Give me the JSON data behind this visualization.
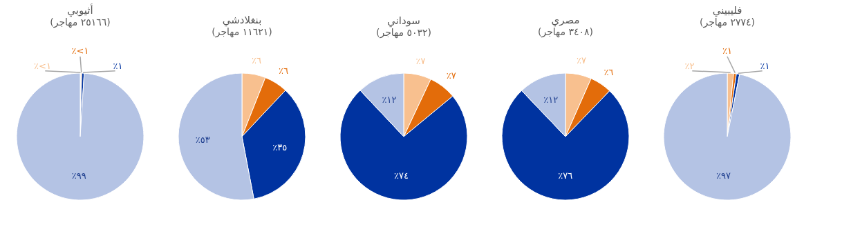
{
  "chart_data": [
    {
      "type": "pie",
      "title": "أثيوبي",
      "subtitle": "(٢٥١٦٦ مهاجر)",
      "categories": [
        null,
        null,
        null,
        null
      ],
      "values": [
        0.2,
        0.2,
        0.6,
        99
      ],
      "value_labels": [
        "٪<١",
        "٪<١",
        "٪١",
        "٪٩٩"
      ],
      "colors": [
        "#f8c08f",
        "#e36c0a",
        "#0033a0",
        "#b4c3e4"
      ]
    },
    {
      "type": "pie",
      "title": "بنغلادشي",
      "subtitle": "(١١٦٢١ مهاجر)",
      "categories": [
        null,
        null,
        null,
        null
      ],
      "values": [
        6,
        6,
        35,
        53
      ],
      "value_labels": [
        "٪٦",
        "٪٦",
        "٪٣٥",
        "٪٥٣"
      ],
      "colors": [
        "#f8c08f",
        "#e36c0a",
        "#0033a0",
        "#b4c3e4"
      ]
    },
    {
      "type": "pie",
      "title": "سوداني",
      "subtitle": "(٥٠٣٢ مهاجر)",
      "categories": [
        null,
        null,
        null,
        null
      ],
      "values": [
        7,
        7,
        74,
        12
      ],
      "value_labels": [
        "٪٧",
        "٪٧",
        "٪٧٤",
        "٪١٢"
      ],
      "colors": [
        "#f8c08f",
        "#e36c0a",
        "#0033a0",
        "#b4c3e4"
      ]
    },
    {
      "type": "pie",
      "title": "مصري",
      "subtitle": "(٣٤٠٨ مهاجر)",
      "categories": [
        null,
        null,
        null,
        null
      ],
      "values": [
        6.6,
        5.6,
        75.7,
        12.1
      ],
      "value_labels": [
        "٪٧",
        "٪٦",
        "٪٧٦",
        "٪١٢"
      ],
      "colors": [
        "#f8c08f",
        "#e36c0a",
        "#0033a0",
        "#b4c3e4"
      ]
    },
    {
      "type": "pie",
      "title": "فليبيني",
      "subtitle": "(٢٧٧٤ مهاجر)",
      "categories": [
        null,
        null,
        null,
        null
      ],
      "values": [
        1.6,
        0.7,
        0.8,
        96.9
      ],
      "value_labels": [
        "٪٢",
        "٪١",
        "٪١",
        "٪٩٧"
      ],
      "colors": [
        "#f8c08f",
        "#e36c0a",
        "#0033a0",
        "#b4c3e4"
      ]
    }
  ]
}
